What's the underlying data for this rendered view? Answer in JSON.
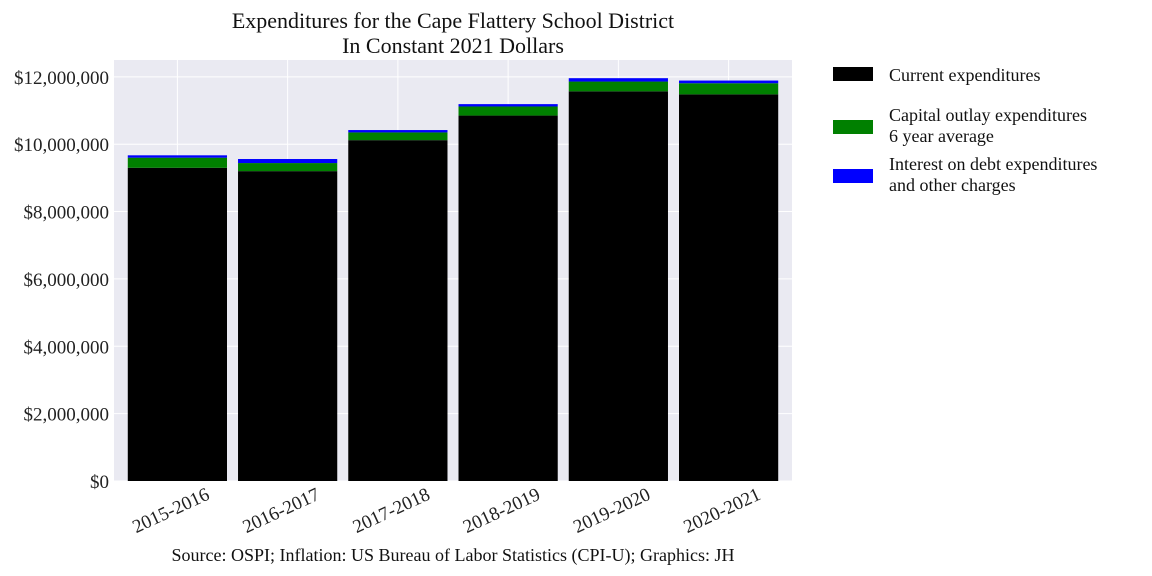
{
  "chart_data": {
    "type": "bar",
    "stacked": true,
    "title": [
      "Expenditures for the Cape Flattery School District",
      "In Constant 2021 Dollars"
    ],
    "categories": [
      "2015-2016",
      "2016-2017",
      "2017-2018",
      "2018-2019",
      "2019-2020",
      "2020-2021"
    ],
    "series": [
      {
        "name": "Current expenditures",
        "color": "#000000",
        "values": [
          9300000,
          9200000,
          10120000,
          10850000,
          11570000,
          11480000
        ]
      },
      {
        "name": "Capital outlay expenditures\n6 year average",
        "color": "#008000",
        "values": [
          300000,
          240000,
          230000,
          270000,
          290000,
          330000
        ]
      },
      {
        "name": "Interest on debt expenditures\nand other charges",
        "color": "#0000ff",
        "values": [
          70000,
          120000,
          70000,
          70000,
          100000,
          80000
        ]
      }
    ],
    "yticks": [
      "$0",
      "$2,000,000",
      "$4,000,000",
      "$6,000,000",
      "$8,000,000",
      "$10,000,000",
      "$12,000,000"
    ],
    "ylim": [
      0,
      12500000
    ],
    "grid": true,
    "legend_position": "outside-right",
    "plot_background": "#eaeaf2"
  },
  "source": "Source: OSPI; Inflation: US Bureau of Labor Statistics (CPI-U); Graphics: JH"
}
